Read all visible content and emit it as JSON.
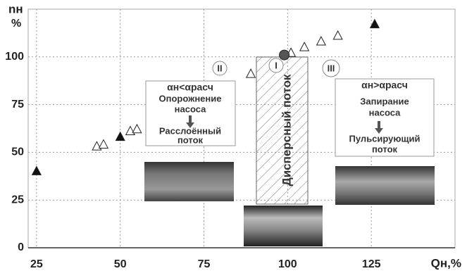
{
  "chart_data": {
    "type": "scatter",
    "y_label": "nн",
    "y_unit": "%",
    "x_label": "Qн,%",
    "xlim": [
      22.5,
      150
    ],
    "ylim": [
      0,
      125
    ],
    "xticks": [
      25,
      50,
      75,
      100,
      125
    ],
    "yticks": [
      0,
      25,
      50,
      75,
      100
    ],
    "grid": true,
    "series": [
      {
        "marker": "filled-triangle",
        "color": "#111111",
        "x": [
          25,
          50,
          126
        ],
        "values": [
          40,
          58,
          117
        ]
      },
      {
        "marker": "open-triangle",
        "color": "#ffffff",
        "x": [
          43,
          45,
          53,
          55,
          89,
          101,
          105,
          110,
          115
        ],
        "values": [
          53,
          54,
          61,
          62,
          91,
          102,
          105,
          108,
          111
        ]
      },
      {
        "marker": "circle",
        "color": "#555555",
        "x": [
          99
        ],
        "values": [
          101
        ]
      }
    ],
    "annotations": {
      "zone_2": "II",
      "zone_1": "I",
      "zone_3": "III",
      "cond_left": "αн<αрасч",
      "left_1": "Опорожнение",
      "left_2": "насоса",
      "left_3": "Расслоённый",
      "left_4": "поток",
      "middle": "Дисперсный поток",
      "cond_right": "αн>αрасч",
      "right_1": "Запирание",
      "right_2": "насоса",
      "right_3": "Пульсирующий",
      "right_4": "поток"
    }
  }
}
